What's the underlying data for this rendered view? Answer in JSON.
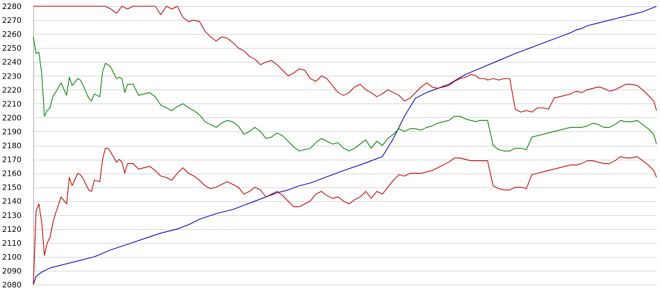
{
  "chart_data": {
    "type": "line",
    "title": "",
    "xlabel": "",
    "ylabel": "",
    "ylim": [
      2080,
      2280
    ],
    "y_ticks": [
      2080,
      2090,
      2100,
      2110,
      2120,
      2130,
      2140,
      2150,
      2160,
      2170,
      2180,
      2190,
      2200,
      2210,
      2220,
      2230,
      2240,
      2250,
      2260,
      2270,
      2280
    ],
    "grid": true,
    "legend": "none",
    "series_styles": [
      {
        "color": "#0000c0"
      },
      {
        "color": "#c00000"
      },
      {
        "color": "#008000"
      },
      {
        "color": "#c00000"
      }
    ],
    "series": [
      {
        "x": [
          0,
          1,
          3,
          6,
          10,
          14,
          18,
          22,
          28,
          34,
          40,
          46,
          52,
          56,
          60,
          66,
          72,
          76,
          80,
          84,
          88,
          92,
          96,
          100,
          104,
          108,
          112,
          115,
          118,
          122,
          126,
          130,
          134,
          138,
          142,
          146,
          150,
          156,
          162,
          168,
          174,
          178,
          182,
          186,
          190,
          194,
          196,
          198,
          200,
          204,
          208,
          212,
          216,
          220,
          225
        ],
        "values": [
          2080,
          2086,
          2089,
          2092,
          2094,
          2096,
          2098,
          2100,
          2105,
          2109,
          2113,
          2117,
          2120,
          2123,
          2127,
          2131,
          2134,
          2137,
          2140,
          2143,
          2146,
          2148,
          2151,
          2153,
          2156,
          2159,
          2162,
          2164,
          2166,
          2169,
          2172,
          2185,
          2201,
          2214,
          2218,
          2221,
          2224,
          2231,
          2236,
          2241,
          2246,
          2249,
          2252,
          2255,
          2258,
          2261,
          2263,
          2264,
          2266,
          2268,
          2270,
          2272,
          2274,
          2276,
          2280
        ]
      },
      {
        "x": [
          0,
          10,
          20,
          24,
          26,
          28,
          30,
          32,
          34,
          36,
          38,
          40,
          42,
          44,
          46,
          48,
          50,
          52,
          54,
          56,
          58,
          60,
          62,
          64,
          66,
          68,
          70,
          72,
          74,
          76,
          78,
          80,
          82,
          84,
          86,
          88,
          90,
          92,
          94,
          96,
          98,
          100,
          102,
          104,
          106,
          108,
          110,
          112,
          114,
          116,
          118,
          120,
          122,
          124,
          126,
          128,
          130,
          132,
          134,
          136,
          138,
          140,
          142,
          144,
          146,
          148,
          150,
          152,
          154,
          156,
          158,
          160,
          161,
          162,
          163,
          164,
          166,
          168,
          170,
          172,
          174,
          176,
          178,
          180,
          182,
          184,
          186,
          188,
          190,
          192,
          194,
          196,
          198,
          200,
          202,
          204,
          206,
          208,
          210,
          212,
          214,
          216,
          218,
          220,
          222,
          224,
          225
        ],
        "values": [
          2280,
          2280,
          2280,
          2280,
          2280,
          2278,
          2275,
          2280,
          2278,
          2280,
          2280,
          2280,
          2280,
          2280,
          2274,
          2280,
          2278,
          2280,
          2272,
          2269,
          2270,
          2269,
          2262,
          2258,
          2255,
          2258,
          2257,
          2254,
          2250,
          2248,
          2244,
          2242,
          2238,
          2240,
          2241,
          2238,
          2234,
          2230,
          2232,
          2235,
          2234,
          2228,
          2226,
          2230,
          2228,
          2223,
          2218,
          2216,
          2218,
          2222,
          2224,
          2220,
          2218,
          2215,
          2217,
          2220,
          2218,
          2216,
          2212,
          2214,
          2218,
          2222,
          2225,
          2222,
          2221,
          2222,
          2223,
          2226,
          2228,
          2229,
          2231,
          2230,
          2228,
          2228,
          2228,
          2227,
          2228,
          2227,
          2228,
          2228,
          2206,
          2204,
          2205,
          2204,
          2207,
          2207,
          2206,
          2214,
          2215,
          2216,
          2217,
          2219,
          2218,
          2220,
          2221,
          2222,
          2221,
          2219,
          2220,
          2222,
          2224,
          2224,
          2223,
          2220,
          2216,
          2212,
          2205
        ]
      },
      {
        "x": [
          0,
          1,
          2,
          3,
          4,
          5,
          6,
          7,
          8,
          10,
          12,
          13,
          14,
          16,
          17,
          18,
          20,
          21,
          22,
          24,
          25,
          26,
          27,
          28,
          30,
          31,
          32,
          33,
          34,
          36,
          38,
          40,
          42,
          44,
          46,
          48,
          50,
          52,
          54,
          56,
          58,
          60,
          62,
          64,
          66,
          68,
          70,
          72,
          74,
          76,
          78,
          80,
          82,
          84,
          86,
          88,
          90,
          92,
          94,
          96,
          98,
          100,
          102,
          104,
          106,
          108,
          110,
          112,
          114,
          116,
          118,
          120,
          122,
          124,
          126,
          128,
          130,
          132,
          134,
          136,
          138,
          140,
          142,
          144,
          146,
          148,
          150,
          152,
          154,
          156,
          158,
          160,
          161,
          162,
          163,
          164,
          166,
          168,
          170,
          172,
          174,
          176,
          178,
          180,
          182,
          184,
          186,
          188,
          190,
          192,
          194,
          196,
          198,
          200,
          202,
          204,
          206,
          208,
          210,
          212,
          214,
          216,
          218,
          220,
          222,
          224,
          225
        ],
        "values": [
          2258,
          2246,
          2247,
          2232,
          2201,
          2205,
          2207,
          2215,
          2218,
          2225,
          2216,
          2229,
          2223,
          2228,
          2227,
          2223,
          2214,
          2212,
          2217,
          2215,
          2233,
          2239,
          2238,
          2236,
          2228,
          2229,
          2228,
          2218,
          2224,
          2224,
          2216,
          2217,
          2218,
          2215,
          2209,
          2207,
          2205,
          2208,
          2210,
          2207,
          2205,
          2202,
          2197,
          2195,
          2193,
          2196,
          2198,
          2197,
          2194,
          2188,
          2190,
          2193,
          2190,
          2185,
          2186,
          2189,
          2187,
          2183,
          2179,
          2176,
          2177,
          2178,
          2182,
          2185,
          2183,
          2181,
          2182,
          2178,
          2176,
          2178,
          2181,
          2184,
          2178,
          2183,
          2180,
          2185,
          2188,
          2192,
          2190,
          2192,
          2192,
          2191,
          2193,
          2194,
          2196,
          2197,
          2198,
          2201,
          2201,
          2199,
          2198,
          2197,
          2198,
          2198,
          2198,
          2198,
          2180,
          2177,
          2176,
          2176,
          2178,
          2178,
          2177,
          2186,
          2187,
          2188,
          2189,
          2190,
          2191,
          2192,
          2193,
          2193,
          2193,
          2194,
          2196,
          2195,
          2193,
          2193,
          2195,
          2198,
          2197,
          2197,
          2198,
          2195,
          2192,
          2188,
          2181
        ]
      },
      {
        "x": [
          0,
          1,
          2,
          3,
          4,
          5,
          6,
          7,
          8,
          10,
          12,
          13,
          14,
          16,
          17,
          18,
          20,
          21,
          22,
          24,
          25,
          26,
          27,
          28,
          30,
          31,
          32,
          33,
          34,
          36,
          38,
          40,
          42,
          44,
          46,
          48,
          50,
          52,
          54,
          56,
          58,
          60,
          62,
          64,
          66,
          68,
          70,
          72,
          74,
          76,
          78,
          80,
          82,
          84,
          86,
          88,
          90,
          92,
          94,
          96,
          98,
          100,
          102,
          104,
          106,
          108,
          110,
          112,
          114,
          116,
          118,
          120,
          122,
          124,
          126,
          128,
          130,
          132,
          134,
          136,
          138,
          140,
          142,
          144,
          146,
          148,
          150,
          152,
          154,
          156,
          158,
          160,
          161,
          162,
          163,
          164,
          166,
          168,
          170,
          172,
          174,
          176,
          178,
          180,
          182,
          184,
          186,
          188,
          190,
          192,
          194,
          196,
          198,
          200,
          202,
          204,
          206,
          208,
          210,
          212,
          214,
          216,
          218,
          220,
          222,
          224,
          225
        ],
        "values": [
          2080,
          2133,
          2138,
          2125,
          2101,
          2110,
          2114,
          2124,
          2131,
          2143,
          2138,
          2157,
          2151,
          2160,
          2159,
          2156,
          2148,
          2147,
          2155,
          2154,
          2170,
          2178,
          2178,
          2175,
          2168,
          2170,
          2168,
          2160,
          2167,
          2167,
          2163,
          2164,
          2165,
          2162,
          2158,
          2157,
          2155,
          2160,
          2164,
          2160,
          2158,
          2155,
          2151,
          2149,
          2150,
          2152,
          2154,
          2152,
          2150,
          2145,
          2147,
          2150,
          2148,
          2143,
          2145,
          2147,
          2144,
          2140,
          2136,
          2136,
          2138,
          2140,
          2145,
          2147,
          2144,
          2142,
          2143,
          2140,
          2138,
          2141,
          2143,
          2147,
          2142,
          2147,
          2145,
          2150,
          2155,
          2159,
          2158,
          2160,
          2160,
          2160,
          2161,
          2162,
          2164,
          2166,
          2168,
          2171,
          2171,
          2170,
          2169,
          2169,
          2169,
          2169,
          2169,
          2169,
          2151,
          2149,
          2148,
          2148,
          2150,
          2150,
          2149,
          2159,
          2160,
          2161,
          2162,
          2163,
          2164,
          2165,
          2166,
          2166,
          2167,
          2169,
          2169,
          2168,
          2167,
          2167,
          2169,
          2172,
          2171,
          2171,
          2172,
          2169,
          2166,
          2162,
          2157
        ]
      }
    ]
  }
}
